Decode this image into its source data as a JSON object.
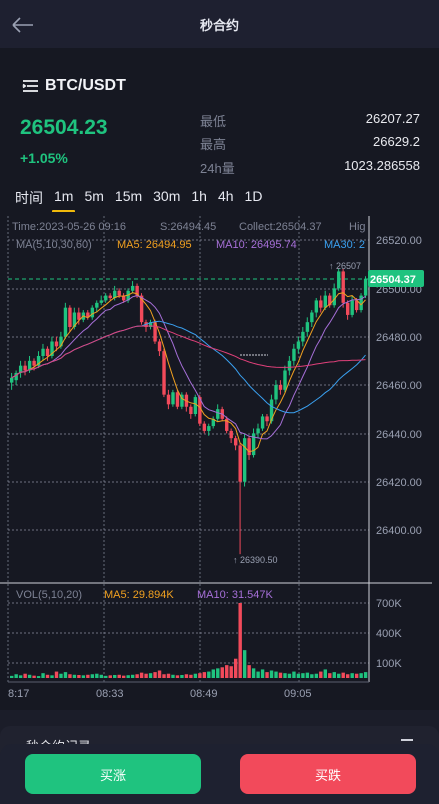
{
  "header": {
    "title": "秒合约"
  },
  "pair": {
    "name": "BTC/USDT"
  },
  "ticker": {
    "price": "26504.23",
    "change": "+1.05%",
    "low_label": "最低",
    "low": "26207.27",
    "high_label": "最高",
    "high": "26629.2",
    "vol_label": "24h量",
    "vol": "1023.286558"
  },
  "tabs": [
    "时间",
    "1m",
    "5m",
    "15m",
    "30m",
    "1h",
    "4h",
    "1D"
  ],
  "active_tab": "1m",
  "chart": {
    "info_time": "Time:2023-05-26 09:16",
    "info_s": "S:26494.45",
    "info_collect": "Collect:26504.37",
    "info_hig": "Hig",
    "ma_label": "MA(5,10,30,60)",
    "ma5": "MA5: 26494.95",
    "ma10": "MA10: 26495.74",
    "ma30": "MA30: 2",
    "vol_label": "VOL(5,10,20)",
    "vol_ma5": "MA5: 29.894K",
    "vol_ma10": "MA10: 31.547K",
    "y_ticks": [
      "26520.00",
      "26500.00",
      "26480.00",
      "26460.00",
      "26440.00",
      "26420.00",
      "26400.00"
    ],
    "vol_ticks": [
      "700K",
      "400K",
      "100K"
    ],
    "x_ticks": [
      "8:17",
      "08:33",
      "08:49",
      "09:05"
    ],
    "last_price": "26504.37",
    "high_mark": "26507",
    "low_mark": "26390.50"
  },
  "colors": {
    "up": "#1fc37f",
    "down": "#f24a5b",
    "ma5": "#f0a020",
    "ma10": "#a66fd8",
    "ma30": "#3aa0f0",
    "ma60": "#e0407a"
  },
  "records": {
    "title": "秒合约记录"
  },
  "actions": {
    "buy": "买涨",
    "sell": "买跌"
  }
}
